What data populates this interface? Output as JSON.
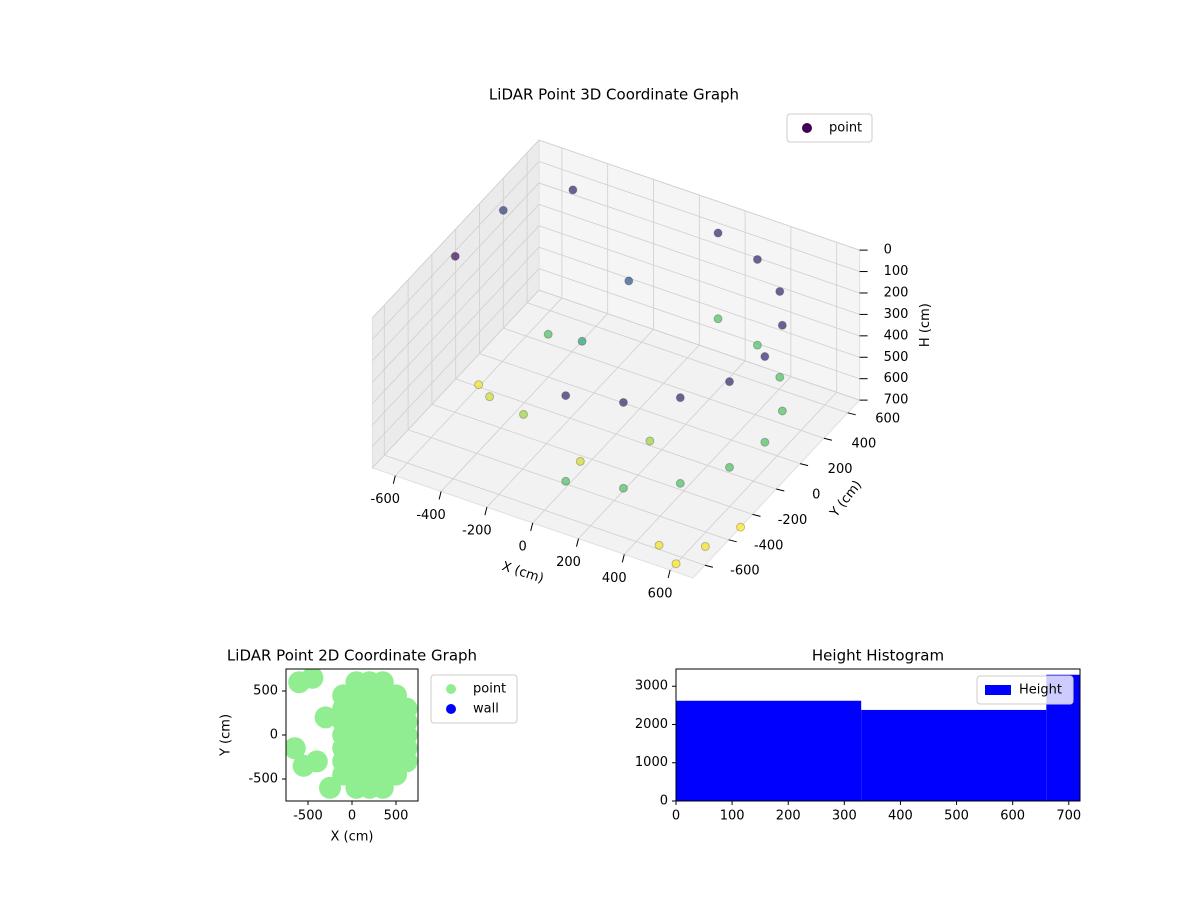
{
  "chart_data": [
    {
      "type": "scatter3d",
      "title": "LiDAR Point 3D Coordinate Graph",
      "xlabel": "X (cm)",
      "ylabel": "Y (cm)",
      "zlabel": "H (cm)",
      "xlim": [
        -700,
        700
      ],
      "ylim": [
        -700,
        700
      ],
      "zlim": [
        0,
        700
      ],
      "z_inverted": true,
      "xticks": [
        -600,
        -400,
        -200,
        0,
        200,
        400,
        600
      ],
      "yticks": [
        -600,
        -400,
        -200,
        0,
        200,
        400,
        600
      ],
      "zticks": [
        0,
        100,
        200,
        300,
        400,
        500,
        600,
        700
      ],
      "colormap": [
        "#440154",
        "#3b528b",
        "#21918c",
        "#5ec962",
        "#fde725"
      ],
      "legend": "upper right",
      "series": [
        {
          "name": "point",
          "color": "#440154",
          "x": [
            113,
            325,
            498,
            611,
            650,
            611,
            498,
            325,
            113,
            113,
            325,
            498,
            611,
            650,
            611,
            498,
            325,
            113,
            -300,
            -500,
            -200,
            -100,
            0,
            200,
            -400,
            -600,
            600,
            650,
            700,
            500,
            -700,
            -500,
            -650
          ],
          "y": [
            -640,
            -563,
            -418,
            -222,
            0,
            222,
            418,
            563,
            640,
            -640,
            -563,
            -418,
            -222,
            0,
            222,
            418,
            563,
            640,
            -200,
            -100,
            100,
            300,
            -300,
            -100,
            200,
            0,
            -650,
            -500,
            -300,
            -600,
            400,
            600,
            -100
          ],
          "h": [
            100,
            100,
            100,
            100,
            100,
            100,
            100,
            100,
            100,
            500,
            500,
            500,
            500,
            500,
            500,
            500,
            500,
            500,
            600,
            650,
            400,
            200,
            650,
            600,
            500,
            690,
            700,
            690,
            700,
            680,
            150,
            100,
            50
          ]
        }
      ]
    },
    {
      "type": "scatter",
      "title": "LiDAR Point 2D Coordinate Graph",
      "xlabel": "X (cm)",
      "ylabel": "Y (cm)",
      "xlim": [
        -750,
        750
      ],
      "ylim": [
        -750,
        750
      ],
      "xticks": [
        -500,
        0,
        500
      ],
      "yticks": [
        -500,
        0,
        500
      ],
      "legend": "outside right",
      "series": [
        {
          "name": "point",
          "color": "#90ee90",
          "x": [
            -100,
            -100,
            -100,
            -100,
            -100,
            -100,
            -100,
            50,
            50,
            50,
            50,
            50,
            50,
            50,
            50,
            50,
            200,
            200,
            200,
            200,
            200,
            200,
            200,
            200,
            200,
            350,
            350,
            350,
            350,
            350,
            350,
            350,
            350,
            350,
            500,
            500,
            500,
            500,
            500,
            500,
            500,
            620,
            620,
            620,
            620,
            620,
            -400,
            -550,
            -300,
            -600,
            -450,
            -650,
            -250
          ],
          "y": [
            -450,
            -300,
            -150,
            0,
            150,
            300,
            450,
            -600,
            -450,
            -300,
            -150,
            0,
            150,
            300,
            450,
            600,
            -600,
            -450,
            -300,
            -150,
            0,
            150,
            300,
            450,
            600,
            -600,
            -450,
            -300,
            -150,
            0,
            150,
            300,
            450,
            600,
            -450,
            -300,
            -150,
            0,
            150,
            300,
            450,
            -300,
            -150,
            0,
            150,
            300,
            -300,
            -350,
            200,
            600,
            650,
            -150,
            -600
          ]
        },
        {
          "name": "wall",
          "color": "#0000ff",
          "x": [],
          "y": []
        }
      ]
    },
    {
      "type": "histogram",
      "title": "Height Histogram",
      "bins": [
        0,
        330,
        660,
        720
      ],
      "values": [
        2620,
        2380,
        3300
      ],
      "xlim": [
        0,
        720
      ],
      "ylim": [
        0,
        3450
      ],
      "xticks": [
        0,
        100,
        200,
        300,
        400,
        500,
        600,
        700
      ],
      "yticks": [
        0,
        1000,
        2000,
        3000
      ],
      "legend": "upper right",
      "series_name": "Height",
      "color": "#0000ff"
    }
  ]
}
